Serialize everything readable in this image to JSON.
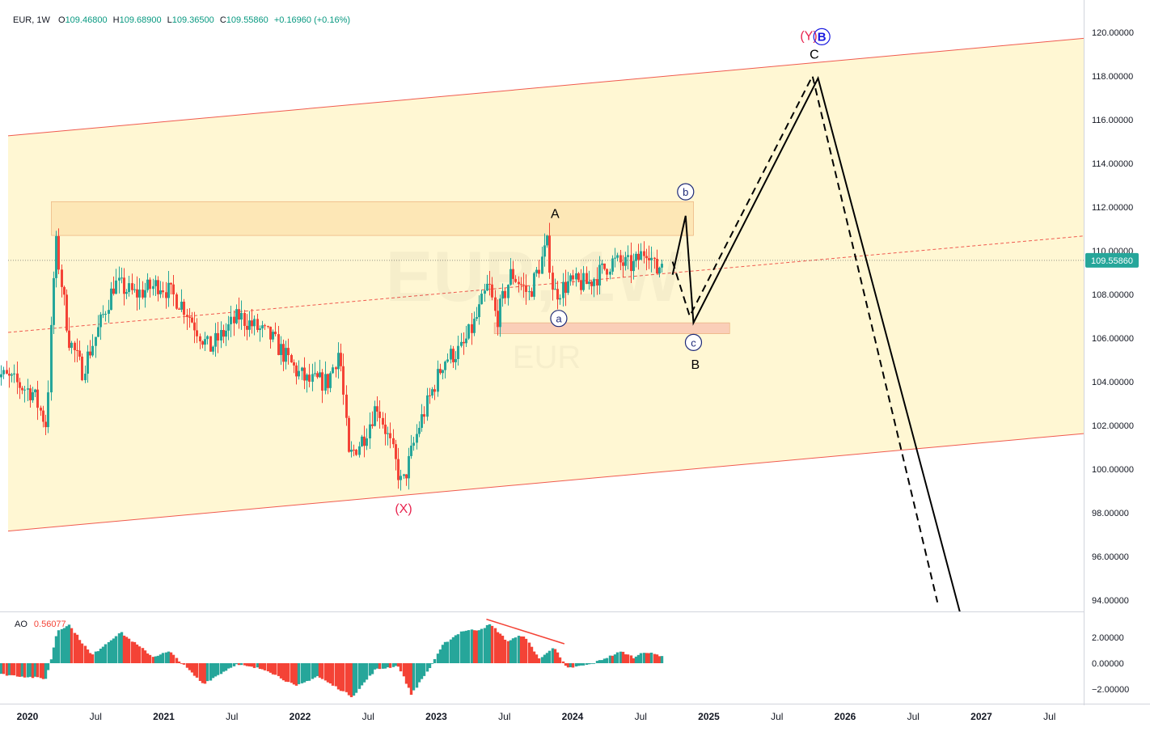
{
  "header": {
    "symbol": "EUR, 1W",
    "o_label": "O",
    "o_value": "109.46800",
    "h_label": "H",
    "h_value": "109.68900",
    "l_label": "L",
    "l_value": "109.36500",
    "c_label": "C",
    "c_value": "109.55860",
    "change": "+0.16960 (+0.16%)"
  },
  "watermark": {
    "line1": "EUR, 1W",
    "line2": "EUR"
  },
  "colors": {
    "up": "#26a69a",
    "down": "#f44336",
    "channel_fill": "#fff7d1",
    "channel_line": "#f05a4f",
    "resistance_zone": "#fde4b0",
    "support_zone": "#f9c9b5",
    "wave_red": "#e8244f",
    "wave_blue": "#1a1ae0",
    "price_tag": "#26a69a"
  },
  "chart_data": [
    {
      "type": "candlestick",
      "title": "EUR, 1W",
      "x_labels": [
        "2020",
        "Jul",
        "2021",
        "Jul",
        "2022",
        "Jul",
        "2023",
        "Jul",
        "2024",
        "Jul",
        "2025",
        "Jul",
        "2026",
        "Jul",
        "2027",
        "Jul"
      ],
      "y_ticks": [
        "120.00000",
        "118.00000",
        "116.00000",
        "114.00000",
        "112.00000",
        "110.00000",
        "108.00000",
        "106.00000",
        "104.00000",
        "102.00000",
        "100.00000",
        "98.00000",
        "96.00000",
        "94.00000"
      ],
      "ylim": [
        93.5,
        121.3
      ],
      "last_price": "109.55860",
      "anchor_points": [
        {
          "date": "2019-10-01",
          "close": 104.5
        },
        {
          "date": "2020-01-15",
          "close": 103.5
        },
        {
          "date": "2020-02-20",
          "close": 102.0
        },
        {
          "date": "2020-03-15",
          "close": 110.5
        },
        {
          "date": "2020-04-20",
          "close": 106.0
        },
        {
          "date": "2020-05-25",
          "close": 104.5
        },
        {
          "date": "2020-07-10",
          "close": 106.5
        },
        {
          "date": "2020-08-20",
          "close": 108.5
        },
        {
          "date": "2020-10-15",
          "close": 108.0
        },
        {
          "date": "2020-12-20",
          "close": 108.5
        },
        {
          "date": "2021-02-20",
          "close": 107.5
        },
        {
          "date": "2021-05-01",
          "close": 105.5
        },
        {
          "date": "2021-07-20",
          "close": 107.0
        },
        {
          "date": "2021-10-15",
          "close": 106.0
        },
        {
          "date": "2021-12-20",
          "close": 104.5
        },
        {
          "date": "2022-01-20",
          "close": 104.0
        },
        {
          "date": "2022-03-15",
          "close": 104.0
        },
        {
          "date": "2022-04-15",
          "close": 105.5
        },
        {
          "date": "2022-05-10",
          "close": 100.5
        },
        {
          "date": "2022-06-20",
          "close": 101.5
        },
        {
          "date": "2022-07-25",
          "close": 103.0
        },
        {
          "date": "2022-09-01",
          "close": 101.0
        },
        {
          "date": "2022-09-30",
          "close": 99.2
        },
        {
          "date": "2022-11-15",
          "close": 102.0
        },
        {
          "date": "2023-01-20",
          "close": 105.0
        },
        {
          "date": "2023-03-10",
          "close": 105.5
        },
        {
          "date": "2023-04-20",
          "close": 107.0
        },
        {
          "date": "2023-05-20",
          "close": 108.5
        },
        {
          "date": "2023-06-10",
          "close": 106.8
        },
        {
          "date": "2023-07-20",
          "close": 109.0
        },
        {
          "date": "2023-09-05",
          "close": 108.0
        },
        {
          "date": "2023-10-25",
          "close": 110.3
        },
        {
          "date": "2023-11-10",
          "close": 108.0
        },
        {
          "date": "2023-12-20",
          "close": 108.5
        },
        {
          "date": "2024-02-10",
          "close": 108.5
        },
        {
          "date": "2024-04-15",
          "close": 109.5
        },
        {
          "date": "2024-06-10",
          "close": 109.3
        },
        {
          "date": "2024-07-20",
          "close": 110.2
        },
        {
          "date": "2024-08-10",
          "close": 109.0
        },
        {
          "date": "2024-08-28",
          "close": 109.56
        }
      ],
      "channel": {
        "upper": [
          {
            "date": "2019-10-01",
            "value": 115.2
          },
          {
            "date": "2027-09-15",
            "value": 119.7
          }
        ],
        "lower": [
          {
            "date": "2019-10-01",
            "value": 97.1
          },
          {
            "date": "2027-09-15",
            "value": 101.6
          }
        ],
        "mid": [
          {
            "date": "2019-10-01",
            "value": 106.2
          },
          {
            "date": "2027-09-15",
            "value": 110.65
          }
        ]
      },
      "zones": [
        {
          "name": "resistance",
          "from": "2020-03-05",
          "to": "2024-11-20",
          "top": 112.25,
          "bottom": 110.7
        },
        {
          "name": "support",
          "from": "2023-06-05",
          "to": "2025-02-25",
          "top": 106.7,
          "bottom": 106.2
        }
      ],
      "projection_solid": [
        {
          "date": "2024-09-25",
          "value": 108.9
        },
        {
          "date": "2024-10-30",
          "value": 111.6
        },
        {
          "date": "2024-11-20",
          "value": 106.7
        },
        {
          "date": "2025-10-20",
          "value": 117.9
        },
        {
          "date": "2026-11-05",
          "value": 93.4
        }
      ],
      "projection_dashed": [
        {
          "date": "2024-09-25",
          "value": 109.5
        },
        {
          "date": "2024-11-10",
          "value": 107.0
        },
        {
          "date": "2025-10-05",
          "value": 118.0
        },
        {
          "date": "2026-09-05",
          "value": 93.9
        }
      ],
      "annotations": [
        {
          "text": "A",
          "date": "2023-11-15",
          "value": 111.5,
          "style": "plain"
        },
        {
          "text": "a",
          "date": "2023-11-25",
          "value": 106.9,
          "style": "circle"
        },
        {
          "text": "b",
          "date": "2024-10-30",
          "value": 112.7,
          "style": "circle"
        },
        {
          "text": "c",
          "date": "2024-11-20",
          "value": 105.8,
          "style": "circle"
        },
        {
          "text": "B",
          "date": "2024-11-25",
          "value": 104.6,
          "style": "plain"
        },
        {
          "text": "C",
          "date": "2025-10-10",
          "value": 118.8,
          "style": "plain"
        },
        {
          "text": "(Y)",
          "date": "2025-09-25",
          "value": 119.65,
          "style": "red"
        },
        {
          "text": "B",
          "date": "2025-10-30",
          "value": 119.8,
          "style": "blue-circle"
        },
        {
          "text": "(X)",
          "date": "2022-10-05",
          "value": 98.0,
          "style": "red"
        }
      ]
    },
    {
      "type": "bar",
      "title": "AO",
      "indicator_label": "AO",
      "indicator_value": "0.56077",
      "y_ticks": [
        "2.00000",
        "0.00000",
        "−2.00000"
      ],
      "ylim": [
        -3.2,
        3.6
      ],
      "anchor_points": [
        {
          "date": "2019-10-01",
          "value": -0.8
        },
        {
          "date": "2020-02-20",
          "value": -1.2
        },
        {
          "date": "2020-03-20",
          "value": 2.5
        },
        {
          "date": "2020-04-20",
          "value": 3.0
        },
        {
          "date": "2020-06-20",
          "value": 0.6
        },
        {
          "date": "2020-09-05",
          "value": 2.4
        },
        {
          "date": "2020-12-01",
          "value": 0.5
        },
        {
          "date": "2021-01-15",
          "value": 0.9
        },
        {
          "date": "2021-04-15",
          "value": -1.6
        },
        {
          "date": "2021-07-10",
          "value": -0.1
        },
        {
          "date": "2021-10-01",
          "value": -0.5
        },
        {
          "date": "2021-12-20",
          "value": -1.8
        },
        {
          "date": "2022-02-15",
          "value": -1.0
        },
        {
          "date": "2022-05-20",
          "value": -2.6
        },
        {
          "date": "2022-07-20",
          "value": -0.5
        },
        {
          "date": "2022-09-20",
          "value": -0.2
        },
        {
          "date": "2022-10-25",
          "value": -2.4
        },
        {
          "date": "2022-12-10",
          "value": -0.5
        },
        {
          "date": "2023-01-20",
          "value": 1.5
        },
        {
          "date": "2023-03-10",
          "value": 2.5
        },
        {
          "date": "2023-04-25",
          "value": 2.6
        },
        {
          "date": "2023-05-25",
          "value": 3.0
        },
        {
          "date": "2023-07-10",
          "value": 1.7
        },
        {
          "date": "2023-08-20",
          "value": 2.2
        },
        {
          "date": "2023-10-05",
          "value": 0.3
        },
        {
          "date": "2023-11-10",
          "value": 1.3
        },
        {
          "date": "2023-12-15",
          "value": -0.4
        },
        {
          "date": "2024-02-15",
          "value": -0.1
        },
        {
          "date": "2024-05-10",
          "value": 0.9
        },
        {
          "date": "2024-06-15",
          "value": 0.4
        },
        {
          "date": "2024-07-05",
          "value": 0.9
        },
        {
          "date": "2024-08-28",
          "value": 0.56
        }
      ],
      "divergence_line": [
        {
          "date": "2023-05-15",
          "value": 3.4
        },
        {
          "date": "2023-12-10",
          "value": 1.5
        }
      ]
    }
  ]
}
